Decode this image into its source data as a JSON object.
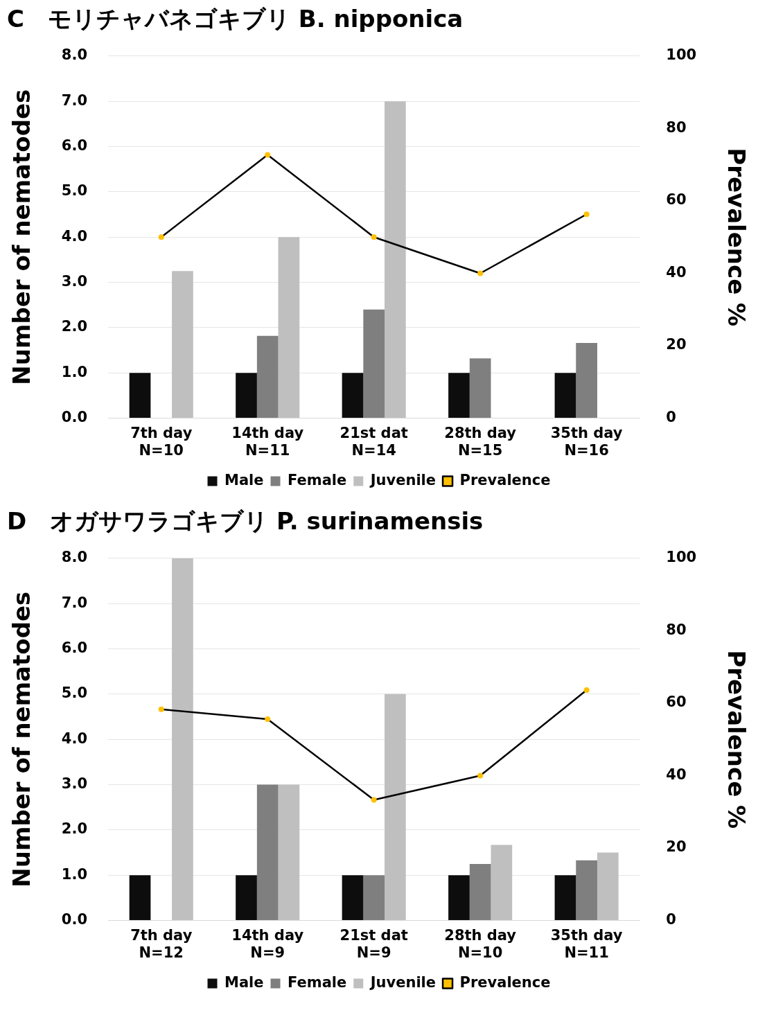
{
  "chart_data": [
    {
      "type": "bar",
      "title": "C　モリチャバネゴキブリ B. nipponica",
      "ylabel": "Number of nematodes",
      "y2label": "Prevalence %",
      "categories": [
        "7th day\nN=10",
        "14th day\nN=11",
        "21st dat\nN=14",
        "28th day\nN=15",
        "35th day\nN=16"
      ],
      "series": [
        {
          "name": "Male",
          "color": "#0d0d0d",
          "values": [
            1,
            1,
            1,
            1,
            1
          ]
        },
        {
          "name": "Female",
          "color": "#7f7f7f",
          "values": [
            null,
            1.82,
            2.4,
            1.32,
            1.66
          ]
        },
        {
          "name": "Juvenile",
          "color": "#bfbfbf",
          "values": [
            3.25,
            4,
            7,
            null,
            null
          ]
        },
        {
          "name": "Prevalence",
          "type": "line",
          "axis": "y2",
          "color": "#000000",
          "values": [
            50,
            72.7,
            50,
            40,
            56.3
          ]
        }
      ],
      "ylim": [
        0,
        8
      ],
      "yticks": [
        {
          "value": 0,
          "label": "0.0"
        },
        {
          "value": 1,
          "label": "1.0"
        },
        {
          "value": 2,
          "label": "2.0"
        },
        {
          "value": 3,
          "label": "3.0"
        },
        {
          "value": 4,
          "label": "4.0"
        },
        {
          "value": 5,
          "label": "5.0"
        },
        {
          "value": 6,
          "label": "6.0"
        },
        {
          "value": 7,
          "label": "7.0"
        },
        {
          "value": 8,
          "label": "8.0"
        }
      ],
      "y2lim": [
        0,
        100
      ],
      "y2ticks": [
        0,
        20,
        40,
        60,
        80,
        100
      ],
      "grid": "y",
      "legend": "bottom",
      "marker": "circle"
    },
    {
      "type": "bar",
      "title": "D　オガサワラゴキブリ P. surinamensis",
      "ylabel": "Number of nematodes",
      "y2label": "Prevalence %",
      "categories": [
        "7th day\nN=12",
        "14th day\nN=9",
        "21st dat\nN=9",
        "28th day\nN=10",
        "35th day\nN=11"
      ],
      "series": [
        {
          "name": "Male",
          "color": "#0d0d0d",
          "values": [
            1,
            1,
            1,
            1,
            1
          ]
        },
        {
          "name": "Female",
          "color": "#7f7f7f",
          "values": [
            null,
            3,
            1,
            1.25,
            1.33
          ]
        },
        {
          "name": "Juvenile",
          "color": "#bfbfbf",
          "values": [
            8,
            3,
            5,
            1.67,
            1.5
          ]
        },
        {
          "name": "Prevalence",
          "type": "line",
          "axis": "y2",
          "color": "#000000",
          "values": [
            58.3,
            55.6,
            33.3,
            40,
            63.6
          ]
        }
      ],
      "ylim": [
        0,
        8
      ],
      "yticks": [
        {
          "value": 0,
          "label": "0.0"
        },
        {
          "value": 1,
          "label": "1.0"
        },
        {
          "value": 2,
          "label": "2.0"
        },
        {
          "value": 3,
          "label": "3.0"
        },
        {
          "value": 4,
          "label": "4.0"
        },
        {
          "value": 5,
          "label": "5.0"
        },
        {
          "value": 6,
          "label": "6.0"
        },
        {
          "value": 7,
          "label": "7.0"
        },
        {
          "value": 8,
          "label": "8.0"
        }
      ],
      "y2lim": [
        0,
        100
      ],
      "y2ticks": [
        0,
        20,
        40,
        60,
        80,
        100
      ],
      "grid": "y",
      "legend": "bottom",
      "marker": "circle"
    }
  ]
}
